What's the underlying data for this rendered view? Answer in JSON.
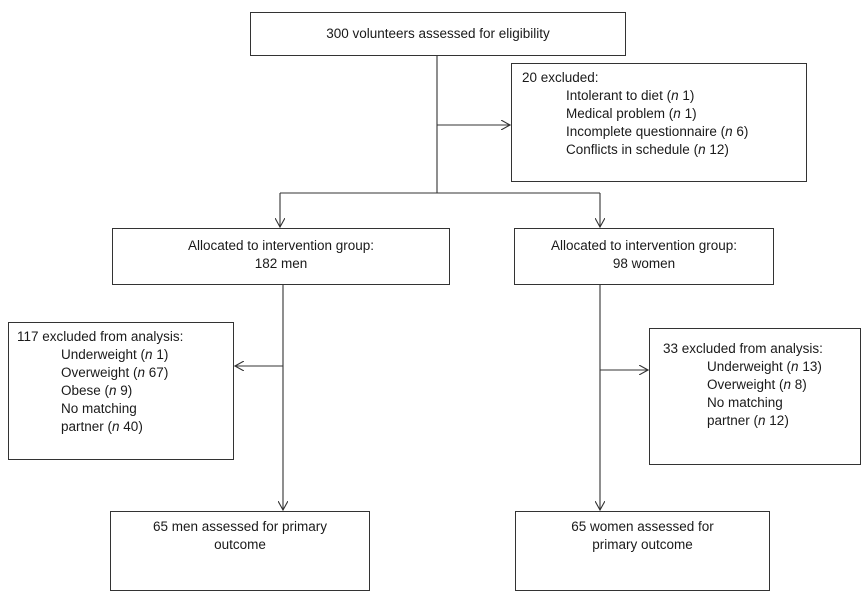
{
  "top": {
    "text": "300 volunteers assessed for eligibility"
  },
  "excluded_main": {
    "header": "20 excluded:",
    "items": [
      {
        "pre": "Intolerant to diet (",
        "n": "n",
        "post": " 1)"
      },
      {
        "pre": "Medical problem (",
        "n": "n",
        "post": " 1)"
      },
      {
        "pre": "Incomplete questionnaire (",
        "n": "n",
        "post": " 6)"
      },
      {
        "pre": "Conflicts in schedule (",
        "n": "n",
        "post": " 12)"
      }
    ]
  },
  "alloc_men": {
    "line1": "Allocated to intervention group:",
    "line2": "182 men"
  },
  "alloc_women": {
    "line1": "Allocated to intervention group:",
    "line2": "98 women"
  },
  "excl_men": {
    "header": "117 excluded from analysis:",
    "l1_pre": "Underweight (",
    "l1_n": "n",
    "l1_post": " 1)",
    "l2_pre": "Overweight (",
    "l2_n": "n",
    "l2_post": " 67)",
    "l3_pre": "Obese (",
    "l3_n": "n",
    "l3_post": " 9)",
    "l4": "No matching",
    "l5_pre": "partner (",
    "l5_n": "n",
    "l5_post": " 40)"
  },
  "excl_women": {
    "header": "33 excluded from analysis:",
    "l1_pre": "Underweight (",
    "l1_n": "n",
    "l1_post": " 13)",
    "l2_pre": "Overweight (",
    "l2_n": "n",
    "l2_post": " 8)",
    "l3": "No matching",
    "l4_pre": "partner (",
    "l4_n": "n",
    "l4_post": " 12)"
  },
  "outcome_men": {
    "line1": "65 men assessed for primary",
    "line2": "outcome"
  },
  "outcome_women": {
    "line1": "65 women assessed for",
    "line2": "primary outcome"
  }
}
